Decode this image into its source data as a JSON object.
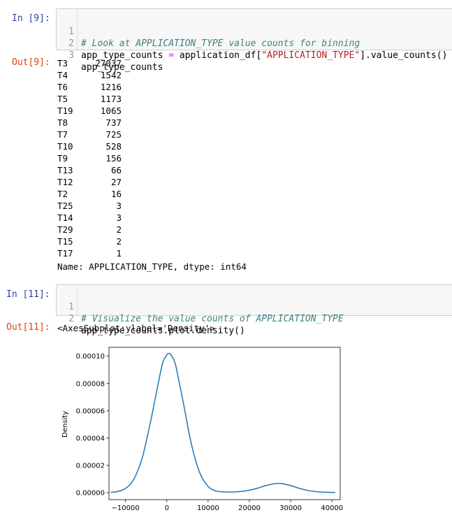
{
  "cell1": {
    "in_prompt": "In [9]:",
    "out_prompt": "Out[9]:",
    "code": [
      {
        "n": "1",
        "comment": "# Look at APPLICATION_TYPE value counts for binning"
      },
      {
        "n": "2",
        "pre": "app_type_counts ",
        "op": "=",
        "mid": " application_df[",
        "str": "\"APPLICATION_TYPE\"",
        "post": "].value_counts()"
      },
      {
        "n": "3",
        "pre": "app_type_counts"
      }
    ],
    "output": [
      {
        "key": "T3",
        "val": "27037"
      },
      {
        "key": "T4",
        "val": "1542"
      },
      {
        "key": "T6",
        "val": "1216"
      },
      {
        "key": "T5",
        "val": "1173"
      },
      {
        "key": "T19",
        "val": "1065"
      },
      {
        "key": "T8",
        "val": "737"
      },
      {
        "key": "T7",
        "val": "725"
      },
      {
        "key": "T10",
        "val": "528"
      },
      {
        "key": "T9",
        "val": "156"
      },
      {
        "key": "T13",
        "val": "66"
      },
      {
        "key": "T12",
        "val": "27"
      },
      {
        "key": "T2",
        "val": "16"
      },
      {
        "key": "T25",
        "val": "3"
      },
      {
        "key": "T14",
        "val": "3"
      },
      {
        "key": "T29",
        "val": "2"
      },
      {
        "key": "T15",
        "val": "2"
      },
      {
        "key": "T17",
        "val": "1"
      }
    ],
    "footer": "Name: APPLICATION_TYPE, dtype: int64"
  },
  "cell2": {
    "in_prompt": "In [11]:",
    "out_prompt": "Out[11]:",
    "code": [
      {
        "n": "1",
        "comment": "# Visualize the value counts of APPLICATION_TYPE"
      },
      {
        "n": "2",
        "pre": "app_type_counts.plot.density()"
      }
    ],
    "repr": "<AxesSubplot:ylabel='Density'>"
  },
  "colors": {
    "line": "#1f77b4",
    "in_prompt": "#303f9f",
    "out_prompt": "#d84315",
    "comment": "#408080",
    "string": "#ba2121",
    "operator": "#aa22ff"
  },
  "chart_data": {
    "type": "line",
    "title": "",
    "xlabel": "",
    "ylabel": "Density",
    "xlim": [
      -14000,
      42000
    ],
    "ylim": [
      -5.1e-06,
      0.0001065
    ],
    "xticks": [
      -10000,
      0,
      10000,
      20000,
      30000,
      40000
    ],
    "xtick_labels": [
      "−10000",
      "0",
      "10000",
      "20000",
      "30000",
      "40000"
    ],
    "yticks": [
      0,
      2e-05,
      4e-05,
      6e-05,
      8e-05,
      0.0001
    ],
    "ytick_labels": [
      "0.00000",
      "0.00002",
      "0.00004",
      "0.00006",
      "0.00008",
      "0.00010"
    ],
    "series": [
      {
        "x": [
          -13600,
          -12000,
          -10000,
          -8000,
          -6000,
          -4000,
          -3000,
          -2000,
          -1000,
          0,
          500,
          1000,
          2000,
          3000,
          4000,
          6000,
          8000,
          10000,
          12000,
          14000,
          16000,
          18000,
          20000,
          22000,
          24000,
          26000,
          27000,
          28000,
          30000,
          32000,
          34000,
          36000,
          38000,
          40000,
          40800
        ],
        "y": [
          3e-07,
          8e-07,
          3.1e-06,
          9.8e-06,
          2.5e-05,
          5.1e-05,
          6.6e-05,
          8.1e-05,
          9.5e-05,
          0.000101,
          0.000102,
          0.000101,
          9.5e-05,
          8.1e-05,
          6.6e-05,
          3.5e-05,
          1.45e-05,
          4.6e-06,
          1.2e-06,
          6e-07,
          5e-07,
          9e-07,
          1.8e-06,
          3.3e-06,
          5.2e-06,
          6.5e-06,
          6.8e-06,
          6.6e-06,
          5.2e-06,
          3.3e-06,
          1.7e-06,
          8e-07,
          4e-07,
          2e-07,
          1e-07
        ]
      }
    ],
    "grid": false
  }
}
